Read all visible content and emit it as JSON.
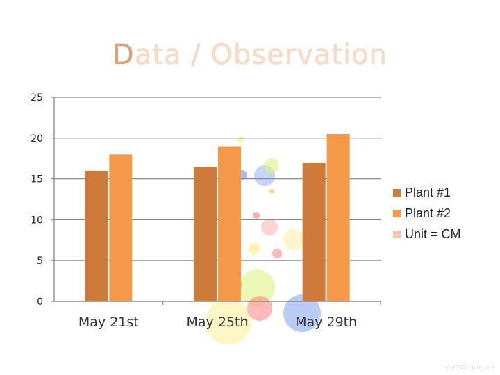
{
  "slide": {
    "title": "Data / Observation",
    "watermark": "slidESOlt.blog.me"
  },
  "colors": {
    "series1": "#cd7a3a",
    "series2": "#f4984a",
    "unit": "#f5c4ae",
    "axis": "#8c8c8c",
    "title": "#f6dcc6"
  },
  "chart_data": {
    "type": "bar",
    "categories": [
      "May 21st",
      "May 25th",
      "May 29th"
    ],
    "series": [
      {
        "name": "Plant #1",
        "values": [
          16,
          16.5,
          17
        ]
      },
      {
        "name": "Plant #2",
        "values": [
          18,
          19,
          20.5
        ]
      }
    ],
    "legend": [
      "Plant #1",
      "Plant #2",
      "Unit = CM"
    ],
    "legend_position": "right",
    "ylim": [
      0,
      25
    ],
    "yticks": [
      "0",
      "5",
      "10",
      "15",
      "20",
      "25"
    ],
    "ytick_values": [
      0,
      5,
      10,
      15,
      20,
      25
    ],
    "grid": true,
    "xlabel": "",
    "ylabel": ""
  }
}
